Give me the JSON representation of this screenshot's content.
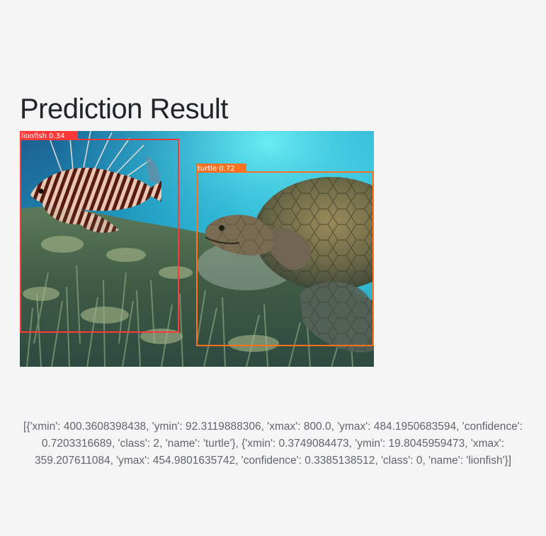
{
  "page": {
    "title": "Prediction Result"
  },
  "detections": [
    {
      "label": "lionfish 0.34",
      "color": "#ff3838"
    },
    {
      "label": "turtle 0.72",
      "color": "#ff701f"
    }
  ],
  "result_text": "[{'xmin': 400.3608398438, 'ymin': 92.3119888306, 'xmax': 800.0, 'ymax': 484.1950683594, 'confidence': 0.7203316689, 'class': 2, 'name': 'turtle'}, {'xmin': 0.3749084473, 'ymin': 19.8045959473, 'xmax': 359.207611084, 'ymax': 454.9801635742, 'confidence': 0.3385138512, 'class': 0, 'name': 'lionfish'}]"
}
